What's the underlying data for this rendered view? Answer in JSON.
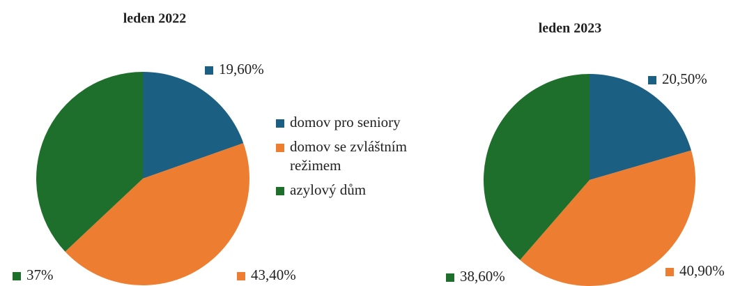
{
  "chart_data": [
    {
      "type": "pie",
      "title": "leden 2022",
      "categories": [
        "domov pro seniory",
        "domov se zvláštním režimem",
        "azylový dům"
      ],
      "values": [
        19.6,
        43.4,
        37
      ],
      "value_labels": [
        "19,60%",
        "43,40%",
        "37%"
      ],
      "colors": [
        "#1b5f82",
        "#ed7d31",
        "#1e6f2b"
      ]
    },
    {
      "type": "pie",
      "title": "leden 2023",
      "categories": [
        "domov pro seniory",
        "domov se zvláštním režimem",
        "azylový dům"
      ],
      "values": [
        20.5,
        40.9,
        38.6
      ],
      "value_labels": [
        "20,50%",
        "40,90%",
        "38,60%"
      ],
      "colors": [
        "#1b5f82",
        "#ed7d31",
        "#1e6f2b"
      ]
    }
  ]
}
